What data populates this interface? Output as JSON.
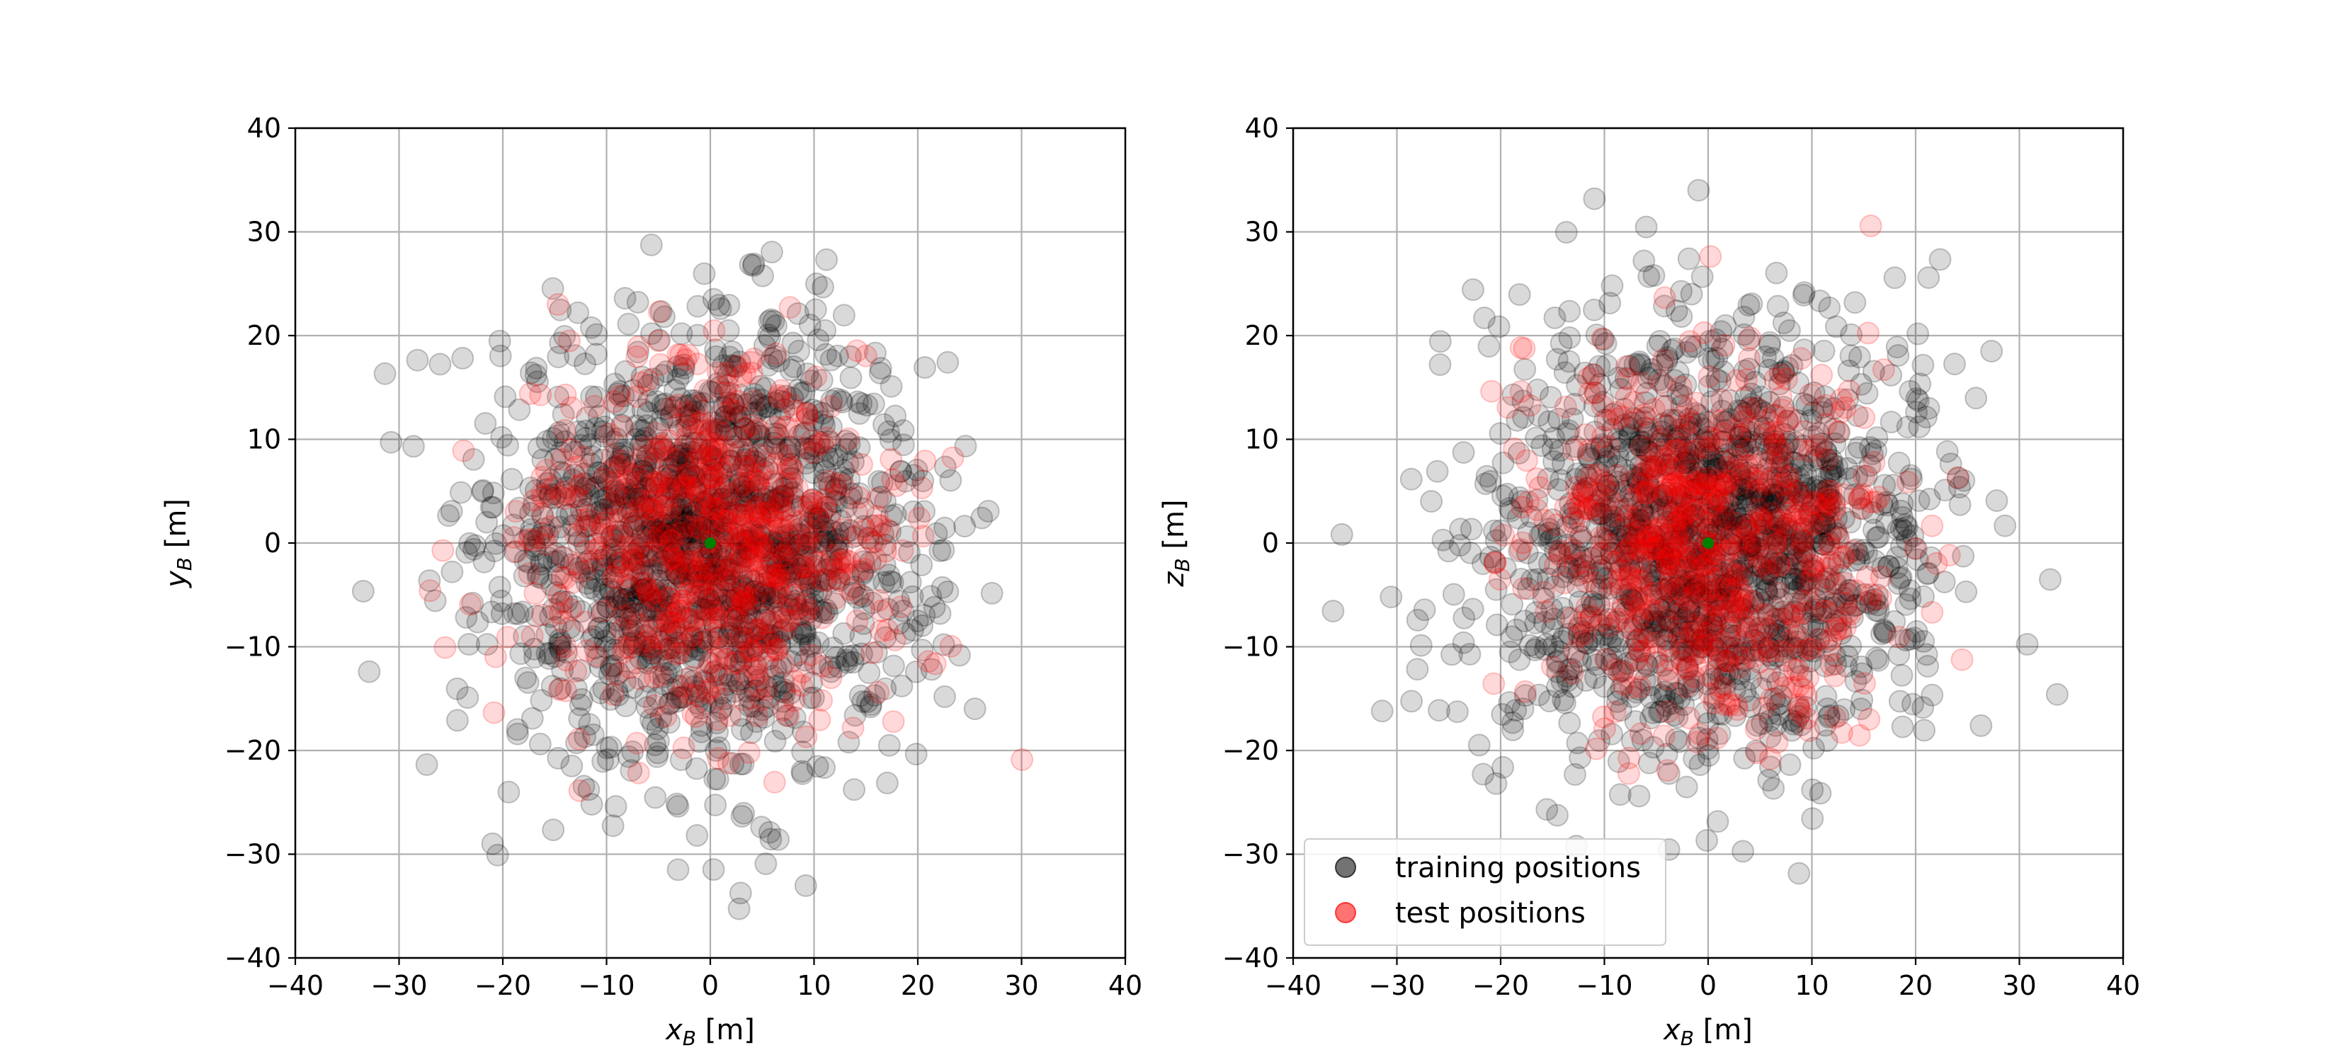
{
  "colors": {
    "training": "#000000",
    "test": "#ff0000",
    "origin": "#008000",
    "grid": "#b0b0b0",
    "legend_border": "#cccccc"
  },
  "chart_data": [
    {
      "type": "scatter",
      "xlabel": "x_B [m]",
      "ylabel": "y_B [m]",
      "xlabel_main": "x",
      "xlabel_sub": "B",
      "xlabel_unit": " [m]",
      "ylabel_main": "y",
      "ylabel_sub": "B",
      "ylabel_unit": " [m]",
      "xlim": [
        -40,
        40
      ],
      "ylim": [
        -40,
        40
      ],
      "xticks": [
        "−40",
        "−30",
        "−20",
        "−10",
        "0",
        "10",
        "20",
        "30",
        "40"
      ],
      "yticks": [
        "−40",
        "−30",
        "−20",
        "−10",
        "0",
        "10",
        "20",
        "30",
        "40"
      ],
      "grid": true,
      "legend": false,
      "series": [
        {
          "name": "training positions",
          "distribution": "isotropic gaussian cloud",
          "center": [
            0,
            0
          ],
          "std_m": 10.5,
          "approx_points": 1500,
          "opacity": 0.15
        },
        {
          "name": "test positions",
          "distribution": "isotropic gaussian cloud",
          "center": [
            0,
            0
          ],
          "std_m": 8.5,
          "approx_points": 700,
          "opacity": 0.15
        }
      ],
      "origin_marker": [
        0,
        0
      ]
    },
    {
      "type": "scatter",
      "xlabel": "x_B [m]",
      "ylabel": "z_B [m]",
      "xlabel_main": "x",
      "xlabel_sub": "B",
      "xlabel_unit": " [m]",
      "ylabel_main": "z",
      "ylabel_sub": "B",
      "ylabel_unit": " [m]",
      "xlim": [
        -40,
        40
      ],
      "ylim": [
        -40,
        40
      ],
      "xticks": [
        "−40",
        "−30",
        "−20",
        "−10",
        "0",
        "10",
        "20",
        "30",
        "40"
      ],
      "yticks": [
        "−40",
        "−30",
        "−20",
        "−10",
        "0",
        "10",
        "20",
        "30",
        "40"
      ],
      "grid": true,
      "legend": true,
      "legend_loc": "lower left",
      "series": [
        {
          "name": "training positions",
          "distribution": "isotropic gaussian cloud",
          "center": [
            0,
            0
          ],
          "std_m": 10.5,
          "approx_points": 1500,
          "opacity": 0.15
        },
        {
          "name": "test positions",
          "distribution": "isotropic gaussian cloud",
          "center": [
            0,
            0
          ],
          "std_m": 8.5,
          "approx_points": 700,
          "opacity": 0.15
        }
      ],
      "origin_marker": [
        0,
        0
      ]
    }
  ]
}
